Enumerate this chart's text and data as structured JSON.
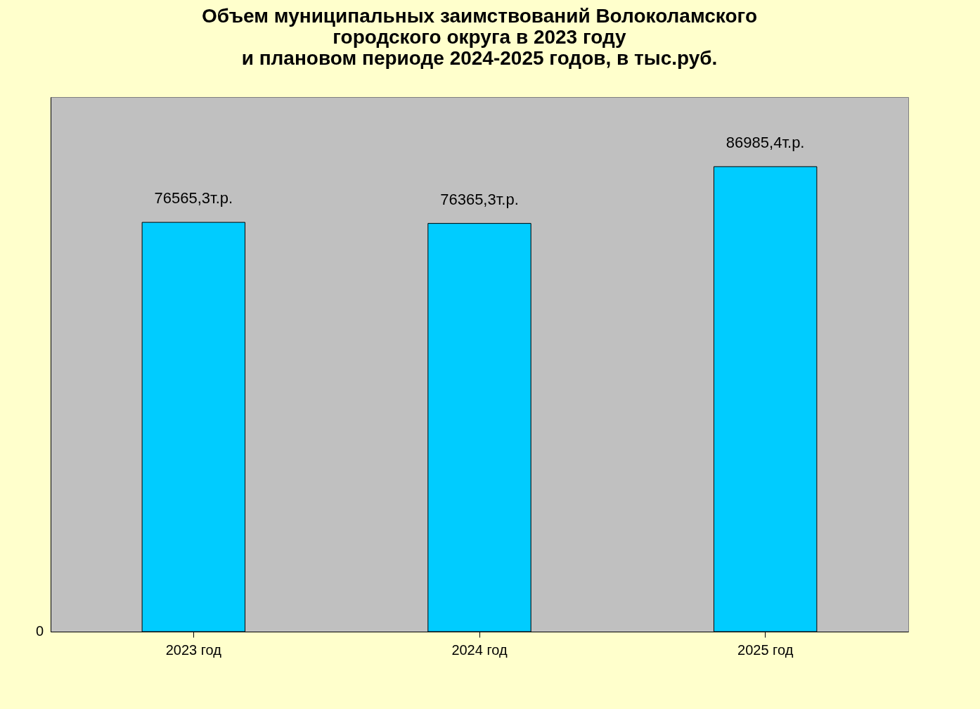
{
  "chart_data": {
    "type": "bar",
    "title": "Объем муниципальных заимствований Волоколамского\nгородского округа в 2023 году\nи плановом периоде 2024-2025 годов, в тыс.руб.",
    "categories": [
      "2023 год",
      "2024 год",
      "2025 год"
    ],
    "values": [
      76565.3,
      76365.3,
      86985.4
    ],
    "value_labels": [
      "76565,3т.р.",
      "76365,3т.р.",
      "86985,4т.р."
    ],
    "color": "#00ccff",
    "ylim": [
      0,
      100000
    ],
    "annotations": [
      "0"
    ]
  }
}
